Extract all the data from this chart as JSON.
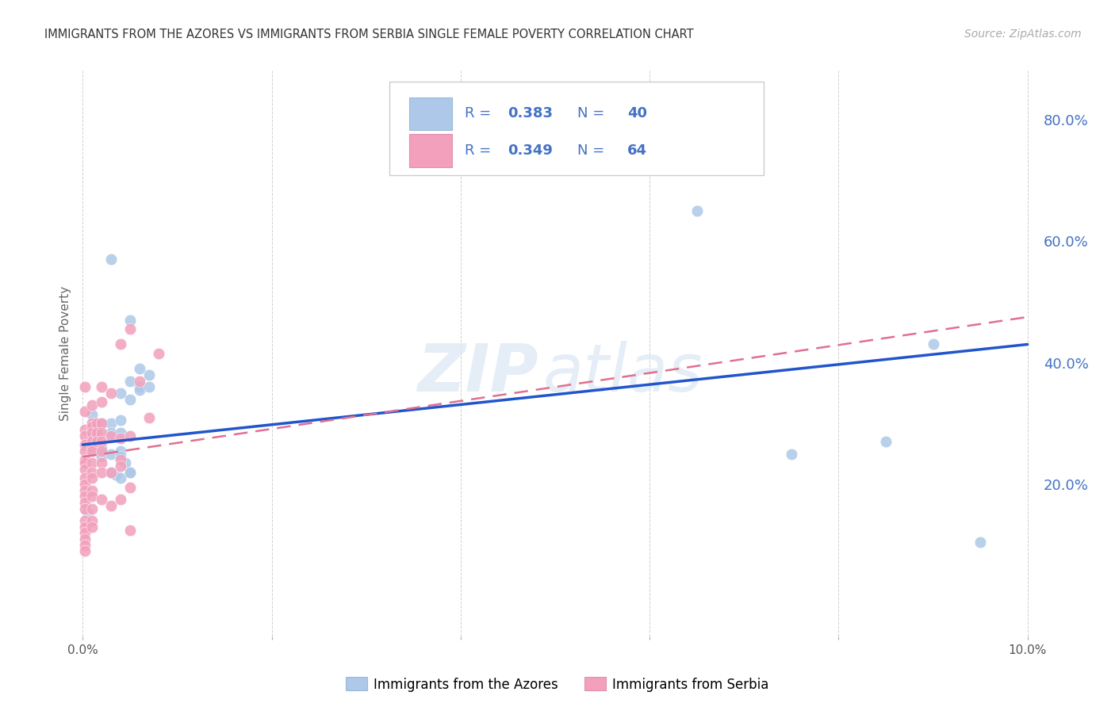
{
  "title": "IMMIGRANTS FROM THE AZORES VS IMMIGRANTS FROM SERBIA SINGLE FEMALE POVERTY CORRELATION CHART",
  "source": "Source: ZipAtlas.com",
  "ylabel": "Single Female Poverty",
  "xlim": [
    -0.0005,
    0.101
  ],
  "ylim": [
    -0.05,
    0.88
  ],
  "right_yticks": [
    0.2,
    0.4,
    0.6,
    0.8
  ],
  "right_yticklabels": [
    "20.0%",
    "40.0%",
    "60.0%",
    "80.0%"
  ],
  "xticks": [
    0.0,
    0.02,
    0.04,
    0.06,
    0.08,
    0.1
  ],
  "xticklabels": [
    "0.0%",
    "",
    "",
    "",
    "",
    "10.0%"
  ],
  "azores_color": "#adc8e8",
  "serbia_color": "#f2a0bc",
  "azores_line_color": "#2255cc",
  "serbia_line_color": "#e07090",
  "watermark_zip": "ZIP",
  "watermark_atlas": "atlas",
  "legend_label_azores": "Immigrants from the Azores",
  "legend_label_serbia": "Immigrants from Serbia",
  "legend_text_color": "#4472c4",
  "azores_R": "0.383",
  "azores_N": "40",
  "serbia_R": "0.349",
  "serbia_N": "64",
  "azores_points": [
    [
      0.0005,
      0.155
    ],
    [
      0.0008,
      0.265
    ],
    [
      0.001,
      0.285
    ],
    [
      0.001,
      0.3
    ],
    [
      0.001,
      0.315
    ],
    [
      0.001,
      0.27
    ],
    [
      0.0015,
      0.27
    ],
    [
      0.0015,
      0.285
    ],
    [
      0.002,
      0.3
    ],
    [
      0.002,
      0.26
    ],
    [
      0.002,
      0.25
    ],
    [
      0.002,
      0.245
    ],
    [
      0.003,
      0.57
    ],
    [
      0.003,
      0.3
    ],
    [
      0.003,
      0.285
    ],
    [
      0.003,
      0.25
    ],
    [
      0.003,
      0.22
    ],
    [
      0.0035,
      0.215
    ],
    [
      0.004,
      0.21
    ],
    [
      0.004,
      0.35
    ],
    [
      0.004,
      0.305
    ],
    [
      0.004,
      0.285
    ],
    [
      0.004,
      0.255
    ],
    [
      0.004,
      0.245
    ],
    [
      0.0045,
      0.235
    ],
    [
      0.005,
      0.22
    ],
    [
      0.005,
      0.47
    ],
    [
      0.005,
      0.37
    ],
    [
      0.005,
      0.34
    ],
    [
      0.005,
      0.22
    ],
    [
      0.006,
      0.39
    ],
    [
      0.006,
      0.36
    ],
    [
      0.006,
      0.355
    ],
    [
      0.007,
      0.38
    ],
    [
      0.007,
      0.36
    ],
    [
      0.065,
      0.65
    ],
    [
      0.075,
      0.25
    ],
    [
      0.085,
      0.27
    ],
    [
      0.09,
      0.43
    ],
    [
      0.095,
      0.105
    ]
  ],
  "serbia_points": [
    [
      0.0002,
      0.36
    ],
    [
      0.0002,
      0.32
    ],
    [
      0.0002,
      0.29
    ],
    [
      0.0002,
      0.28
    ],
    [
      0.0002,
      0.265
    ],
    [
      0.0002,
      0.255
    ],
    [
      0.0002,
      0.24
    ],
    [
      0.0002,
      0.235
    ],
    [
      0.0002,
      0.225
    ],
    [
      0.0002,
      0.21
    ],
    [
      0.0002,
      0.2
    ],
    [
      0.0002,
      0.19
    ],
    [
      0.0002,
      0.18
    ],
    [
      0.0002,
      0.17
    ],
    [
      0.0002,
      0.16
    ],
    [
      0.0002,
      0.14
    ],
    [
      0.0002,
      0.13
    ],
    [
      0.0002,
      0.12
    ],
    [
      0.0002,
      0.11
    ],
    [
      0.0002,
      0.1
    ],
    [
      0.0002,
      0.09
    ],
    [
      0.001,
      0.33
    ],
    [
      0.001,
      0.3
    ],
    [
      0.001,
      0.295
    ],
    [
      0.001,
      0.285
    ],
    [
      0.001,
      0.27
    ],
    [
      0.001,
      0.26
    ],
    [
      0.001,
      0.255
    ],
    [
      0.001,
      0.235
    ],
    [
      0.001,
      0.22
    ],
    [
      0.001,
      0.21
    ],
    [
      0.001,
      0.19
    ],
    [
      0.001,
      0.18
    ],
    [
      0.001,
      0.16
    ],
    [
      0.001,
      0.14
    ],
    [
      0.001,
      0.13
    ],
    [
      0.0015,
      0.3
    ],
    [
      0.0015,
      0.285
    ],
    [
      0.0015,
      0.27
    ],
    [
      0.002,
      0.36
    ],
    [
      0.002,
      0.335
    ],
    [
      0.002,
      0.3
    ],
    [
      0.002,
      0.285
    ],
    [
      0.002,
      0.27
    ],
    [
      0.002,
      0.255
    ],
    [
      0.002,
      0.235
    ],
    [
      0.002,
      0.22
    ],
    [
      0.002,
      0.175
    ],
    [
      0.003,
      0.35
    ],
    [
      0.003,
      0.28
    ],
    [
      0.003,
      0.22
    ],
    [
      0.003,
      0.165
    ],
    [
      0.004,
      0.43
    ],
    [
      0.004,
      0.275
    ],
    [
      0.004,
      0.24
    ],
    [
      0.004,
      0.175
    ],
    [
      0.004,
      0.23
    ],
    [
      0.005,
      0.455
    ],
    [
      0.005,
      0.28
    ],
    [
      0.005,
      0.195
    ],
    [
      0.005,
      0.125
    ],
    [
      0.006,
      0.37
    ],
    [
      0.007,
      0.31
    ],
    [
      0.008,
      0.415
    ]
  ],
  "azores_trend_x": [
    0.0,
    0.1
  ],
  "azores_trend_y": [
    0.265,
    0.43
  ],
  "serbia_trend_x": [
    0.0,
    0.1
  ],
  "serbia_trend_y": [
    0.245,
    0.475
  ],
  "background_color": "#ffffff",
  "grid_color": "#d0d0d0",
  "marker_size": 110
}
